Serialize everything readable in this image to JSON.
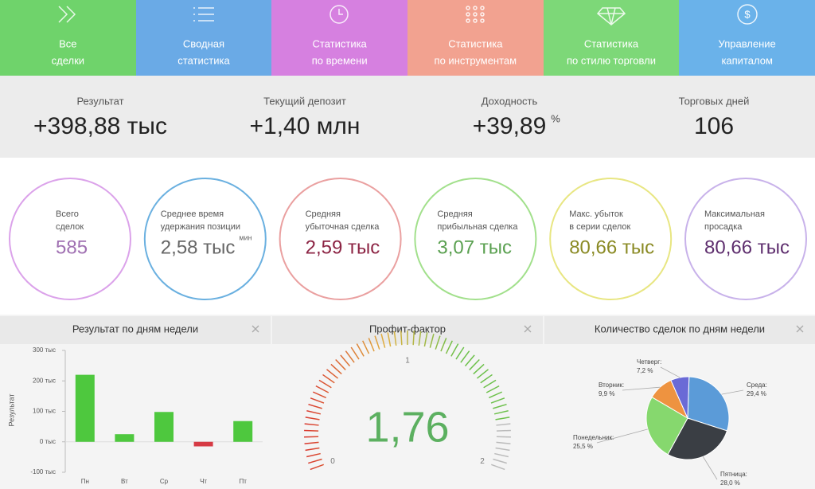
{
  "nav": [
    {
      "lines": [
        "Все",
        "сделки"
      ]
    },
    {
      "lines": [
        "Сводная",
        "статистика"
      ]
    },
    {
      "lines": [
        "Статистика",
        "по времени"
      ]
    },
    {
      "lines": [
        "Статистика",
        "по инструментам"
      ]
    },
    {
      "lines": [
        "Статистика",
        "по стилю торговли"
      ]
    },
    {
      "lines": [
        "Управление",
        "капиталом"
      ]
    }
  ],
  "summary": [
    {
      "label": "Результат",
      "value": "+398,88 тыс"
    },
    {
      "label": "Текущий депозит",
      "value": "+1,40 млн"
    },
    {
      "label": "Доходность",
      "value": "+39,89",
      "unit": "%"
    },
    {
      "label": "Торговых дней",
      "value": "106"
    }
  ],
  "kpis": [
    {
      "lines": [
        "Всего",
        "сделок"
      ],
      "value": "585"
    },
    {
      "lines": [
        "Среднее время",
        "удержания позиции"
      ],
      "value": "2,58 тыс",
      "unit": "мин"
    },
    {
      "lines": [
        "Средняя",
        "убыточная сделка"
      ],
      "value": "2,59 тыс"
    },
    {
      "lines": [
        "Средняя",
        "прибыльная сделка"
      ],
      "value": "3,07 тыс"
    },
    {
      "lines": [
        "Макс. убыток",
        "в серии сделок"
      ],
      "value": "80,66 тыс"
    },
    {
      "lines": [
        "Максимальная",
        "просадка"
      ],
      "value": "80,66 тыс"
    }
  ],
  "panels": [
    {
      "type": "bar",
      "title": "Результат по дням недели",
      "y_label": "Результат",
      "categories": [
        "Пн",
        "Вт",
        "Ср",
        "Чт",
        "Пт"
      ],
      "values": [
        220,
        25,
        98,
        -15,
        68
      ],
      "color": "#4ec83e",
      "negative_color": "#d63a44",
      "ylim": [
        -100,
        300
      ],
      "yticks": [
        {
          "value": -100,
          "label": "-100 тыс"
        },
        {
          "value": 0,
          "label": "0 тыс"
        },
        {
          "value": 100,
          "label": "100 тыс"
        },
        {
          "value": 200,
          "label": "200 тыс"
        },
        {
          "value": 300,
          "label": "300 тыс"
        }
      ]
    },
    {
      "type": "gauge",
      "title": "Профит-фактор",
      "value": 1.76,
      "value_label": "1,76",
      "lim": [
        0,
        2
      ],
      "ticks": [
        0,
        1,
        2
      ]
    },
    {
      "type": "pie",
      "title": "Количество сделок по дням недели",
      "categories": [
        "Среда:",
        "Пятница:",
        "Понедельник:",
        "Вторник:",
        "Четверг:"
      ],
      "values": [
        29.4,
        28.0,
        25.5,
        9.9,
        7.2
      ],
      "value_labels": [
        "29,4 %",
        "28,0 %",
        "25,5 %",
        "9,9 %",
        "7,2 %"
      ],
      "colors": [
        "#5b9bd8",
        "#3a3e44",
        "#86d86e",
        "#ee9340",
        "#6a6ad6"
      ]
    }
  ]
}
